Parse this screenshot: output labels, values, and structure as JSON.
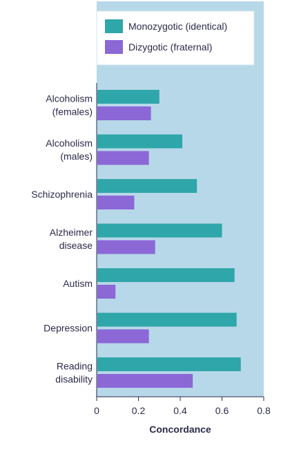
{
  "chart_data": {
    "type": "bar",
    "orientation": "horizontal",
    "categories": [
      [
        "Alcoholism",
        "(females)"
      ],
      [
        "Alcoholism",
        "(males)"
      ],
      [
        "Schizophrenia"
      ],
      [
        "Alzheimer",
        "disease"
      ],
      [
        "Autism"
      ],
      [
        "Depression"
      ],
      [
        "Reading",
        "disability"
      ]
    ],
    "series": [
      {
        "name": "Monozygotic (identical)",
        "color": "#2fa6aa",
        "values": [
          0.3,
          0.41,
          0.48,
          0.6,
          0.66,
          0.67,
          0.69
        ]
      },
      {
        "name": "Dizygotic (fraternal)",
        "color": "#8b68d6",
        "values": [
          0.26,
          0.25,
          0.18,
          0.28,
          0.09,
          0.25,
          0.46
        ]
      }
    ],
    "xlabel": "Concordance",
    "xlim": [
      0,
      0.8
    ],
    "xticks": [
      "0",
      "0.2",
      "0.4",
      "0.6",
      "0.8"
    ],
    "grid": false,
    "legend_position": "top-right",
    "plot_background": "#b7d8e8"
  }
}
